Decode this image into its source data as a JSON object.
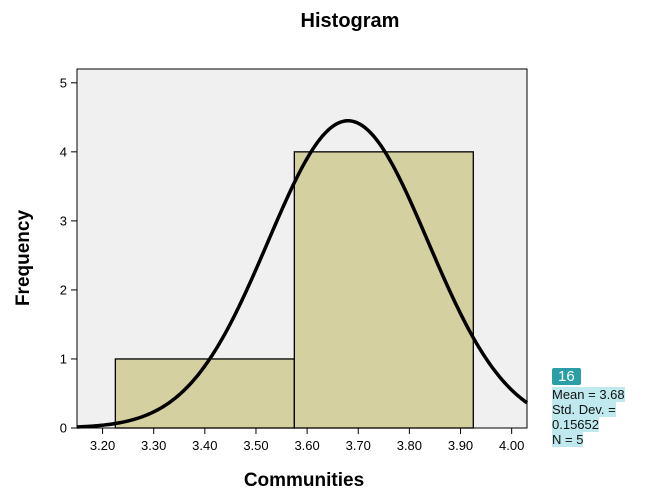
{
  "chart_data": {
    "type": "bar",
    "title": "Histogram",
    "xlabel": "Communities",
    "ylabel": "Frequency",
    "bins": [
      {
        "x0": 3.225,
        "x1": 3.575,
        "count": 1
      },
      {
        "x0": 3.575,
        "x1": 3.925,
        "count": 4
      }
    ],
    "normal_curve": {
      "mean": 3.68,
      "std_dev": 0.15652,
      "n": 5,
      "peak": 4.45
    },
    "xlim": [
      3.15,
      4.03
    ],
    "ylim": [
      0,
      5.2
    ],
    "x_ticks": [
      "3.20",
      "3.30",
      "3.40",
      "3.50",
      "3.60",
      "3.70",
      "3.80",
      "3.90",
      "4.00"
    ],
    "y_ticks": [
      "0",
      "1",
      "2",
      "3",
      "4",
      "5"
    ],
    "plot_background": "#f0f0f0",
    "bar_color": "#d4d0a0",
    "grid": false
  },
  "stats": {
    "badge": "16",
    "mean": "Mean = 3.68",
    "std_dev_label": "Std. Dev. =",
    "std_dev_value": "0.15652",
    "n": "N = 5"
  }
}
